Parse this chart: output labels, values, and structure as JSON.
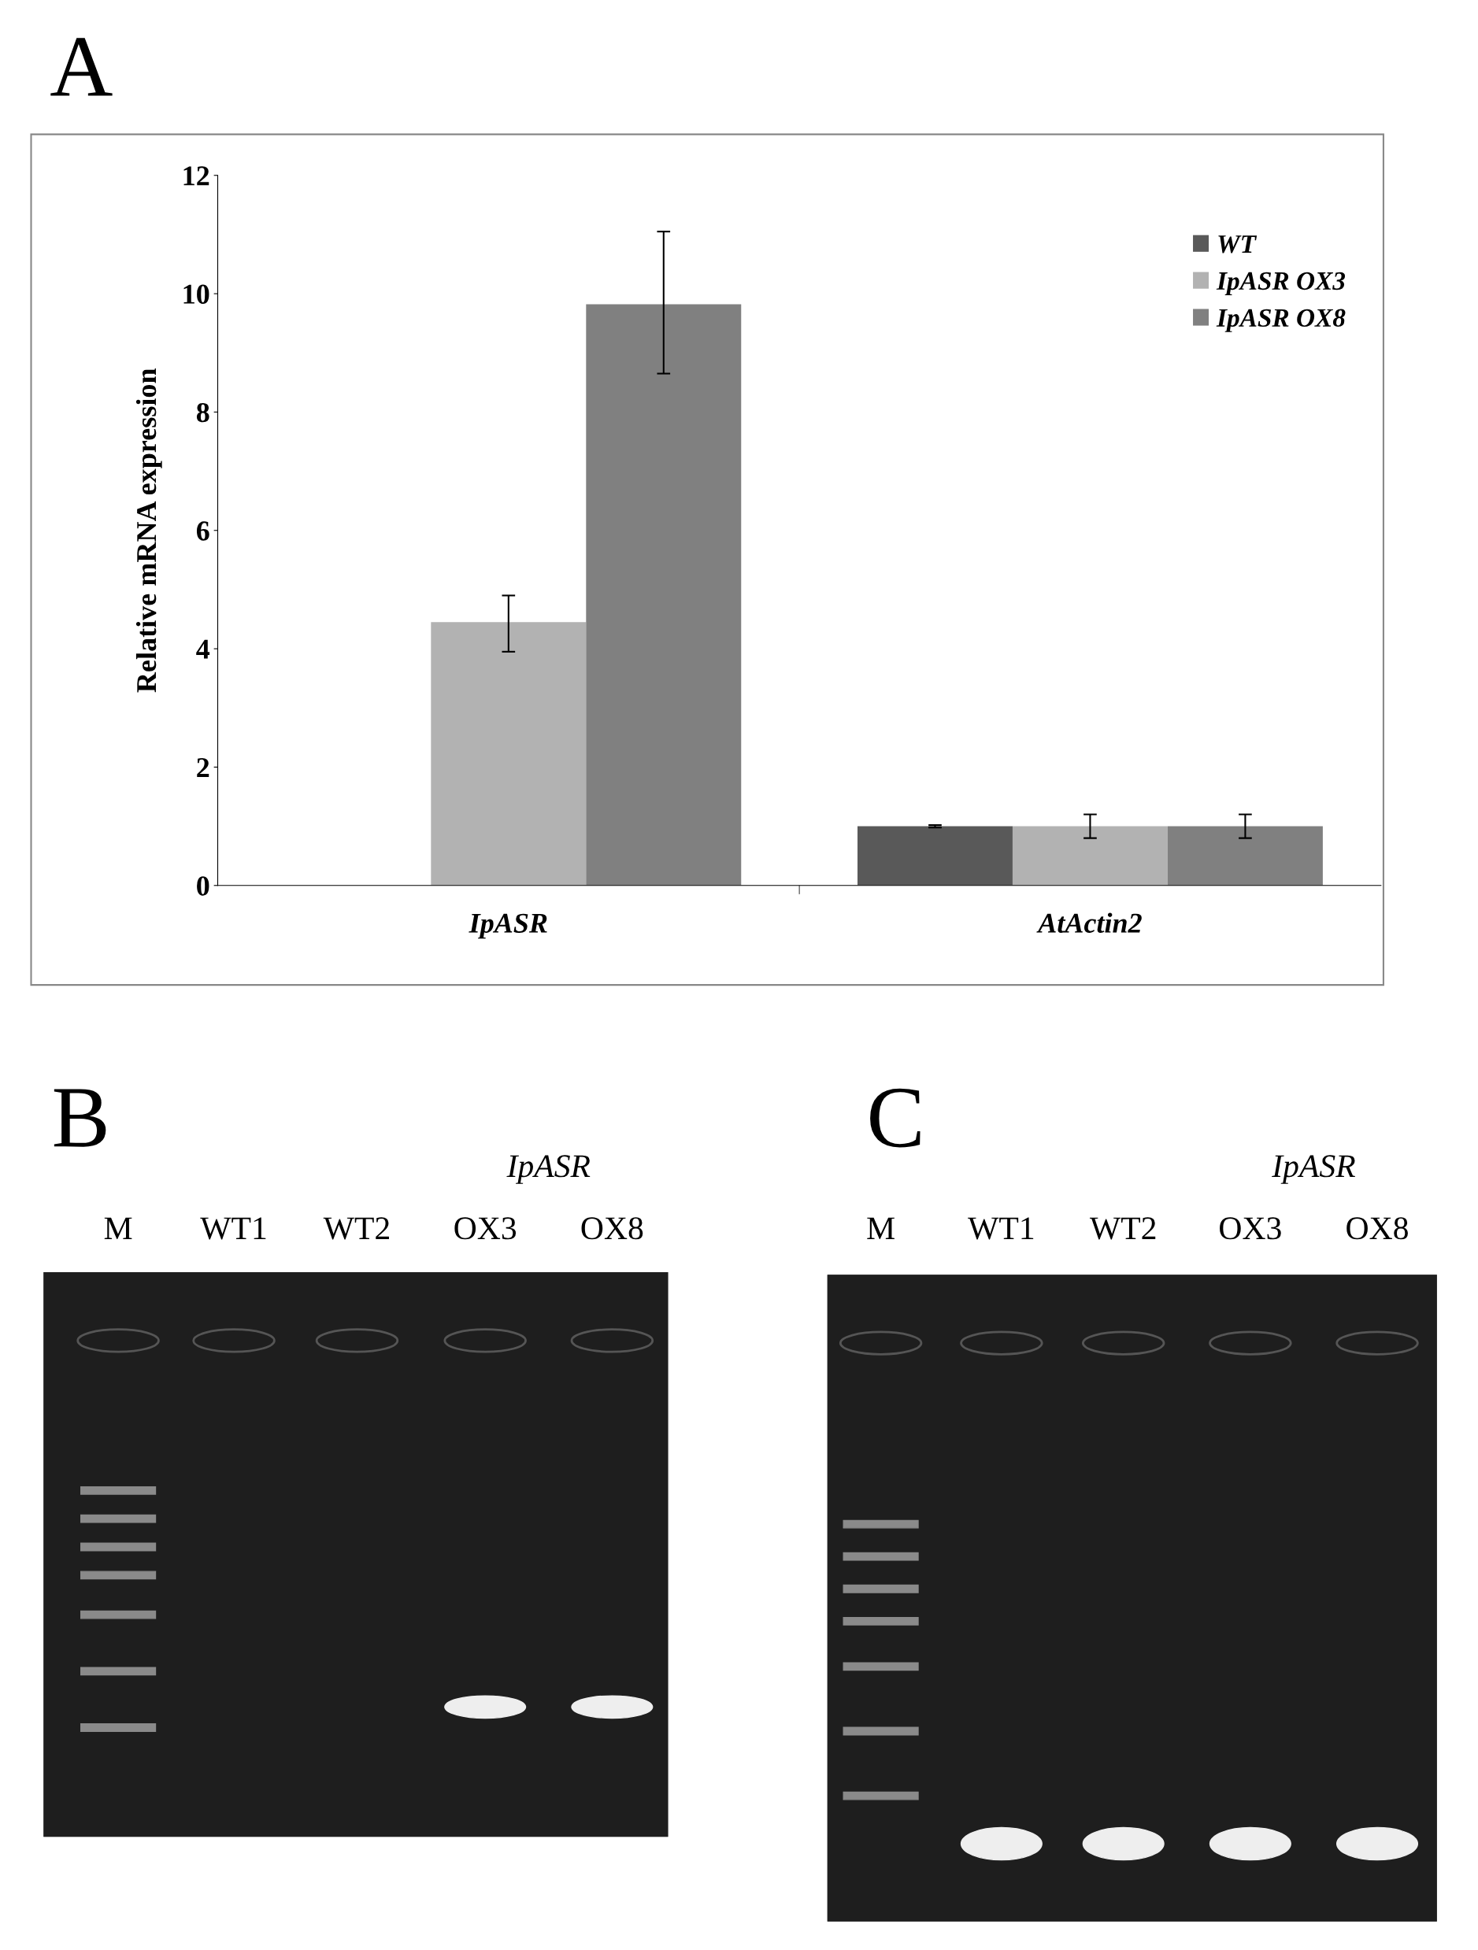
{
  "chart_data": [
    {
      "type": "bar",
      "title": "A",
      "ylabel": "Relative mRNA expression",
      "categories": [
        "IpASR",
        "AtActin2"
      ],
      "ylim": [
        0,
        12
      ],
      "yticks": [
        0,
        2,
        4,
        6,
        8,
        10,
        12
      ],
      "grid": false,
      "legend": "top right",
      "series": [
        {
          "name": "WT",
          "color": "#595959",
          "values": [
            0,
            1.0
          ],
          "errors": [
            null,
            0.02
          ]
        },
        {
          "name": "IpASR OX3",
          "color": "#b2b2b2",
          "values": [
            4.45,
            1.0
          ],
          "errors": [
            [
              3.95,
              4.9
            ],
            [
              0.8,
              1.2
            ]
          ]
        },
        {
          "name": "IpASR OX8",
          "color": "#808080",
          "values": [
            9.82,
            1.0
          ],
          "errors": [
            [
              8.65,
              11.05
            ],
            [
              0.8,
              1.2
            ]
          ]
        }
      ]
    },
    {
      "type": "other",
      "title": "B",
      "categories": [
        "M",
        "WT1",
        "WT2",
        "OX3",
        "OX8"
      ],
      "annotations": [
        "IpASR"
      ]
    },
    {
      "type": "other",
      "title": "C",
      "categories": [
        "M",
        "WT1",
        "WT2",
        "OX3",
        "OX8"
      ],
      "annotations": [
        "IpASR"
      ]
    }
  ]
}
